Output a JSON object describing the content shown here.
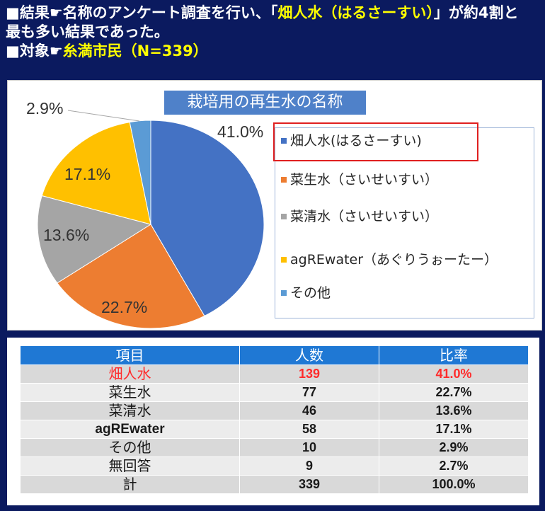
{
  "header": {
    "line1": {
      "prefix": "■結果☛名称のアンケート調査を行い、「",
      "highlight": "畑人水（はるさーすい）",
      "suffix": "」が約4割と"
    },
    "line2": "最も多い結果であった。",
    "line3": {
      "prefix": "■対象☛",
      "highlight": "糸満市民（N=339）"
    }
  },
  "chart_data": {
    "type": "pie",
    "title": "栽培用の再生水の名称",
    "categories": [
      "畑人水(はるさーすい)",
      "菜生水（さいせいすい）",
      "菜清水（さいせいすい）",
      "agREwater（あぐりうぉーたー）",
      "その他"
    ],
    "values": [
      41.0,
      22.7,
      13.6,
      17.1,
      2.9
    ],
    "data_labels": [
      "41.0%",
      "22.7%",
      "13.6%",
      "17.1%",
      "2.9%"
    ],
    "colors": [
      "#4472c4",
      "#ed7d31",
      "#a5a5a5",
      "#ffc000",
      "#5b9bd5"
    ],
    "legend_position": "right"
  },
  "table": {
    "headers": [
      "項目",
      "人数",
      "比率"
    ],
    "rows": [
      [
        "畑人水",
        "139",
        "41.0%"
      ],
      [
        "菜生水",
        "77",
        "22.7%"
      ],
      [
        "菜清水",
        "46",
        "13.6%"
      ],
      [
        "agREwater",
        "58",
        "17.1%"
      ],
      [
        "その他",
        "10",
        "2.9%"
      ],
      [
        "無回答",
        "9",
        "2.7%"
      ],
      [
        "計",
        "339",
        "100.0%"
      ]
    ]
  },
  "colors": {
    "background": "#0b1a5f",
    "highlight_text": "#ffff00",
    "chart_title_bg": "#4f81c9",
    "legend_highlight_border": "#e02020",
    "table_header_bg": "#1f78d4",
    "emphasis_row_text": "#ff2b2b"
  }
}
